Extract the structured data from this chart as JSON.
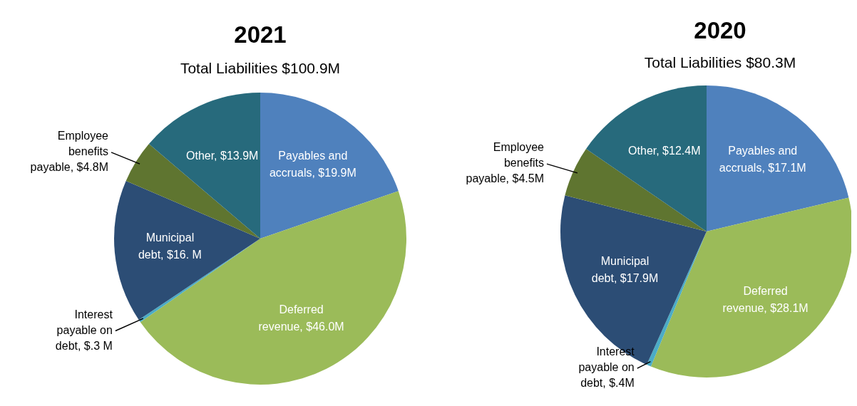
{
  "chart_data": [
    {
      "type": "pie",
      "title": "2021",
      "subtitle": "Total Liabilities $100.9M",
      "categories": [
        "Payables and accruals",
        "Deferred revenue",
        "Interest payable on debt",
        "Municipal debt",
        "Employee benefits payable",
        "Other"
      ],
      "values": [
        19.9,
        46.0,
        0.3,
        16.0,
        4.8,
        13.9
      ],
      "value_labels": [
        "$19.9M",
        "$46.0M",
        "$.3 M",
        "$16. M",
        "$4.8M",
        "$13.9M"
      ],
      "colors": [
        "#4f81bd",
        "#9bbb59",
        "#4bacc6",
        "#2c4d75",
        "#5f7530",
        "#276a7c"
      ]
    },
    {
      "type": "pie",
      "title": "2020",
      "subtitle": "Total Liabilities $80.3M",
      "categories": [
        "Payables and accruals",
        "Deferred revenue",
        "Interest payable on debt",
        "Municipal debt",
        "Employee benefits payable",
        "Other"
      ],
      "values": [
        17.1,
        28.1,
        0.4,
        17.9,
        4.5,
        12.4
      ],
      "value_labels": [
        "$17.1M",
        "$28.1M",
        "$.4M",
        "$17.9M",
        "$4.5M",
        "$12.4M"
      ],
      "colors": [
        "#4f81bd",
        "#9bbb59",
        "#4bacc6",
        "#2c4d75",
        "#5f7530",
        "#276a7c"
      ]
    }
  ]
}
